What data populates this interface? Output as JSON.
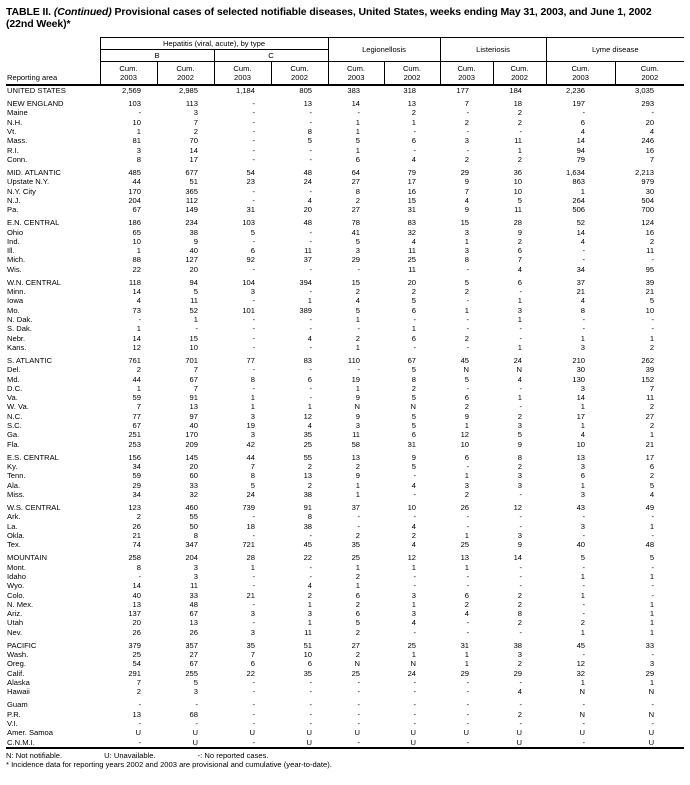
{
  "title": {
    "bold_prefix": "TABLE II.",
    "continued": "(Continued)",
    "text": "Provisional cases of selected notifiable diseases, United States, weeks ending May 31, 2003, and June 1, 2002",
    "week": "(22nd Week)*"
  },
  "table": {
    "reporting_area_label": "Reporting area",
    "groups": {
      "hepatitis": "Hepatitis (viral, acute), by type",
      "hep_b": "B",
      "hep_c": "C",
      "legionellosis": "Legionellosis",
      "listeriosis": "Listeriosis",
      "lyme": "Lyme disease"
    },
    "cum_label": "Cum.",
    "year_columns": [
      "2003",
      "2002",
      "2003",
      "2002",
      "2003",
      "2002",
      "2003",
      "2002",
      "2003",
      "2002"
    ],
    "rows": [
      {
        "kind": "total",
        "label": "UNITED STATES",
        "v": [
          "2,569",
          "2,985",
          "1,184",
          "805",
          "383",
          "318",
          "177",
          "184",
          "2,236",
          "3,035"
        ]
      },
      {
        "kind": "gap"
      },
      {
        "kind": "region",
        "label": "NEW ENGLAND",
        "v": [
          "103",
          "113",
          "-",
          "13",
          "14",
          "13",
          "7",
          "18",
          "197",
          "293"
        ]
      },
      {
        "kind": "state",
        "label": "Maine",
        "v": [
          "-",
          "3",
          "-",
          "-",
          "-",
          "2",
          "-",
          "2",
          "-",
          "-"
        ]
      },
      {
        "kind": "state",
        "label": "N.H.",
        "v": [
          "10",
          "7",
          "-",
          "-",
          "1",
          "1",
          "2",
          "2",
          "6",
          "20"
        ]
      },
      {
        "kind": "state",
        "label": "Vt.",
        "v": [
          "1",
          "2",
          "-",
          "8",
          "1",
          "-",
          "-",
          "-",
          "4",
          "4"
        ]
      },
      {
        "kind": "state",
        "label": "Mass.",
        "v": [
          "81",
          "70",
          "-",
          "5",
          "5",
          "6",
          "3",
          "11",
          "14",
          "246"
        ]
      },
      {
        "kind": "state",
        "label": "R.I.",
        "v": [
          "3",
          "14",
          "-",
          "-",
          "1",
          "-",
          "-",
          "1",
          "94",
          "16"
        ]
      },
      {
        "kind": "state",
        "label": "Conn.",
        "v": [
          "8",
          "17",
          "-",
          "-",
          "6",
          "4",
          "2",
          "2",
          "79",
          "7"
        ]
      },
      {
        "kind": "gap"
      },
      {
        "kind": "region",
        "label": "MID. ATLANTIC",
        "v": [
          "485",
          "677",
          "54",
          "48",
          "64",
          "79",
          "29",
          "36",
          "1,634",
          "2,213"
        ]
      },
      {
        "kind": "state",
        "label": "Upstate N.Y.",
        "v": [
          "44",
          "51",
          "23",
          "24",
          "27",
          "17",
          "9",
          "10",
          "863",
          "979"
        ]
      },
      {
        "kind": "state",
        "label": "N.Y. City",
        "v": [
          "170",
          "365",
          "-",
          "-",
          "8",
          "16",
          "7",
          "10",
          "1",
          "30"
        ]
      },
      {
        "kind": "state",
        "label": "N.J.",
        "v": [
          "204",
          "112",
          "-",
          "4",
          "2",
          "15",
          "4",
          "5",
          "264",
          "504"
        ]
      },
      {
        "kind": "state",
        "label": "Pa.",
        "v": [
          "67",
          "149",
          "31",
          "20",
          "27",
          "31",
          "9",
          "11",
          "506",
          "700"
        ]
      },
      {
        "kind": "gap"
      },
      {
        "kind": "region",
        "label": "E.N. CENTRAL",
        "v": [
          "186",
          "234",
          "103",
          "48",
          "78",
          "83",
          "15",
          "28",
          "52",
          "124"
        ]
      },
      {
        "kind": "state",
        "label": "Ohio",
        "v": [
          "65",
          "38",
          "5",
          "-",
          "41",
          "32",
          "3",
          "9",
          "14",
          "16"
        ]
      },
      {
        "kind": "state",
        "label": "Ind.",
        "v": [
          "10",
          "9",
          "-",
          "-",
          "5",
          "4",
          "1",
          "2",
          "4",
          "2"
        ]
      },
      {
        "kind": "state",
        "label": "Ill.",
        "v": [
          "1",
          "40",
          "6",
          "11",
          "3",
          "11",
          "3",
          "6",
          "-",
          "11"
        ]
      },
      {
        "kind": "state",
        "label": "Mich.",
        "v": [
          "88",
          "127",
          "92",
          "37",
          "29",
          "25",
          "8",
          "7",
          "-",
          "-"
        ]
      },
      {
        "kind": "state",
        "label": "Wis.",
        "v": [
          "22",
          "20",
          "-",
          "-",
          "-",
          "11",
          "-",
          "4",
          "34",
          "95"
        ]
      },
      {
        "kind": "gap"
      },
      {
        "kind": "region",
        "label": "W.N. CENTRAL",
        "v": [
          "118",
          "94",
          "104",
          "394",
          "15",
          "20",
          "5",
          "6",
          "37",
          "39"
        ]
      },
      {
        "kind": "state",
        "label": "Minn.",
        "v": [
          "14",
          "5",
          "3",
          "-",
          "2",
          "2",
          "2",
          "-",
          "21",
          "21"
        ]
      },
      {
        "kind": "state",
        "label": "Iowa",
        "v": [
          "4",
          "11",
          "-",
          "1",
          "4",
          "5",
          "-",
          "1",
          "4",
          "5"
        ]
      },
      {
        "kind": "state",
        "label": "Mo.",
        "v": [
          "73",
          "52",
          "101",
          "389",
          "5",
          "6",
          "1",
          "3",
          "8",
          "10"
        ]
      },
      {
        "kind": "state",
        "label": "N. Dak.",
        "v": [
          "-",
          "1",
          "-",
          "-",
          "1",
          "-",
          "-",
          "1",
          "-",
          "-"
        ]
      },
      {
        "kind": "state",
        "label": "S. Dak.",
        "v": [
          "1",
          "-",
          "-",
          "-",
          "-",
          "1",
          "-",
          "-",
          "-",
          "-"
        ]
      },
      {
        "kind": "state",
        "label": "Nebr.",
        "v": [
          "14",
          "15",
          "-",
          "4",
          "2",
          "6",
          "2",
          "-",
          "1",
          "1"
        ]
      },
      {
        "kind": "state",
        "label": "Kans.",
        "v": [
          "12",
          "10",
          "-",
          "-",
          "1",
          "-",
          "-",
          "1",
          "3",
          "2"
        ]
      },
      {
        "kind": "gap"
      },
      {
        "kind": "region",
        "label": "S. ATLANTIC",
        "v": [
          "761",
          "701",
          "77",
          "83",
          "110",
          "67",
          "45",
          "24",
          "210",
          "262"
        ]
      },
      {
        "kind": "state",
        "label": "Del.",
        "v": [
          "2",
          "7",
          "-",
          "-",
          "-",
          "5",
          "N",
          "N",
          "30",
          "39"
        ]
      },
      {
        "kind": "state",
        "label": "Md.",
        "v": [
          "44",
          "67",
          "8",
          "6",
          "19",
          "8",
          "5",
          "4",
          "130",
          "152"
        ]
      },
      {
        "kind": "state",
        "label": "D.C.",
        "v": [
          "1",
          "7",
          "-",
          "-",
          "1",
          "2",
          "-",
          "-",
          "3",
          "7"
        ]
      },
      {
        "kind": "state",
        "label": "Va.",
        "v": [
          "59",
          "91",
          "1",
          "-",
          "9",
          "5",
          "6",
          "1",
          "14",
          "11"
        ]
      },
      {
        "kind": "state",
        "label": "W. Va.",
        "v": [
          "7",
          "13",
          "1",
          "1",
          "N",
          "N",
          "2",
          "-",
          "1",
          "2"
        ]
      },
      {
        "kind": "state",
        "label": "N.C.",
        "v": [
          "77",
          "97",
          "3",
          "12",
          "9",
          "5",
          "9",
          "2",
          "17",
          "27"
        ]
      },
      {
        "kind": "state",
        "label": "S.C.",
        "v": [
          "67",
          "40",
          "19",
          "4",
          "3",
          "5",
          "1",
          "3",
          "1",
          "2"
        ]
      },
      {
        "kind": "state",
        "label": "Ga.",
        "v": [
          "251",
          "170",
          "3",
          "35",
          "11",
          "6",
          "12",
          "5",
          "4",
          "1"
        ]
      },
      {
        "kind": "state",
        "label": "Fla.",
        "v": [
          "253",
          "209",
          "42",
          "25",
          "58",
          "31",
          "10",
          "9",
          "10",
          "21"
        ]
      },
      {
        "kind": "gap"
      },
      {
        "kind": "region",
        "label": "E.S. CENTRAL",
        "v": [
          "156",
          "145",
          "44",
          "55",
          "13",
          "9",
          "6",
          "8",
          "13",
          "17"
        ]
      },
      {
        "kind": "state",
        "label": "Ky.",
        "v": [
          "34",
          "20",
          "7",
          "2",
          "2",
          "5",
          "-",
          "2",
          "3",
          "6"
        ]
      },
      {
        "kind": "state",
        "label": "Tenn.",
        "v": [
          "59",
          "60",
          "8",
          "13",
          "9",
          "-",
          "1",
          "3",
          "6",
          "2"
        ]
      },
      {
        "kind": "state",
        "label": "Ala.",
        "v": [
          "29",
          "33",
          "5",
          "2",
          "1",
          "4",
          "3",
          "3",
          "1",
          "5"
        ]
      },
      {
        "kind": "state",
        "label": "Miss.",
        "v": [
          "34",
          "32",
          "24",
          "38",
          "1",
          "-",
          "2",
          "-",
          "3",
          "4"
        ]
      },
      {
        "kind": "gap"
      },
      {
        "kind": "region",
        "label": "W.S. CENTRAL",
        "v": [
          "123",
          "460",
          "739",
          "91",
          "37",
          "10",
          "26",
          "12",
          "43",
          "49"
        ]
      },
      {
        "kind": "state",
        "label": "Ark.",
        "v": [
          "2",
          "55",
          "-",
          "8",
          "-",
          "-",
          "-",
          "-",
          "-",
          "-"
        ]
      },
      {
        "kind": "state",
        "label": "La.",
        "v": [
          "26",
          "50",
          "18",
          "38",
          "-",
          "4",
          "-",
          "-",
          "3",
          "1"
        ]
      },
      {
        "kind": "state",
        "label": "Okla.",
        "v": [
          "21",
          "8",
          "-",
          "-",
          "2",
          "2",
          "1",
          "3",
          "-",
          "-"
        ]
      },
      {
        "kind": "state",
        "label": "Tex.",
        "v": [
          "74",
          "347",
          "721",
          "45",
          "35",
          "4",
          "25",
          "9",
          "40",
          "48"
        ]
      },
      {
        "kind": "gap"
      },
      {
        "kind": "region",
        "label": "MOUNTAIN",
        "v": [
          "258",
          "204",
          "28",
          "22",
          "25",
          "12",
          "13",
          "14",
          "5",
          "5"
        ]
      },
      {
        "kind": "state",
        "label": "Mont.",
        "v": [
          "8",
          "3",
          "1",
          "-",
          "1",
          "1",
          "1",
          "-",
          "-",
          "-"
        ]
      },
      {
        "kind": "state",
        "label": "Idaho",
        "v": [
          "-",
          "3",
          "-",
          "-",
          "2",
          "-",
          "-",
          "-",
          "1",
          "1"
        ]
      },
      {
        "kind": "state",
        "label": "Wyo.",
        "v": [
          "14",
          "11",
          "-",
          "4",
          "1",
          "-",
          "-",
          "-",
          "-",
          "-"
        ]
      },
      {
        "kind": "state",
        "label": "Colo.",
        "v": [
          "40",
          "33",
          "21",
          "2",
          "6",
          "3",
          "6",
          "2",
          "1",
          "-"
        ]
      },
      {
        "kind": "state",
        "label": "N. Mex.",
        "v": [
          "13",
          "48",
          "-",
          "1",
          "2",
          "1",
          "2",
          "2",
          "-",
          "1"
        ]
      },
      {
        "kind": "state",
        "label": "Ariz.",
        "v": [
          "137",
          "67",
          "3",
          "3",
          "6",
          "3",
          "4",
          "8",
          "-",
          "1"
        ]
      },
      {
        "kind": "state",
        "label": "Utah",
        "v": [
          "20",
          "13",
          "-",
          "1",
          "5",
          "4",
          "-",
          "2",
          "2",
          "1"
        ]
      },
      {
        "kind": "state",
        "label": "Nev.",
        "v": [
          "26",
          "26",
          "3",
          "11",
          "2",
          "-",
          "-",
          "-",
          "1",
          "1"
        ]
      },
      {
        "kind": "gap"
      },
      {
        "kind": "region",
        "label": "PACIFIC",
        "v": [
          "379",
          "357",
          "35",
          "51",
          "27",
          "25",
          "31",
          "38",
          "45",
          "33"
        ]
      },
      {
        "kind": "state",
        "label": "Wash.",
        "v": [
          "25",
          "27",
          "7",
          "10",
          "2",
          "1",
          "1",
          "3",
          "-",
          "-"
        ]
      },
      {
        "kind": "state",
        "label": "Oreg.",
        "v": [
          "54",
          "67",
          "6",
          "6",
          "N",
          "N",
          "1",
          "2",
          "12",
          "3"
        ]
      },
      {
        "kind": "state",
        "label": "Calif.",
        "v": [
          "291",
          "255",
          "22",
          "35",
          "25",
          "24",
          "29",
          "29",
          "32",
          "29"
        ]
      },
      {
        "kind": "state",
        "label": "Alaska",
        "v": [
          "7",
          "5",
          "-",
          "-",
          "-",
          "-",
          "-",
          "-",
          "1",
          "1"
        ]
      },
      {
        "kind": "state",
        "label": "Hawaii",
        "v": [
          "2",
          "3",
          "-",
          "-",
          "-",
          "-",
          "-",
          "4",
          "N",
          "N"
        ]
      },
      {
        "kind": "gap"
      },
      {
        "kind": "state",
        "label": "Guam",
        "v": [
          "-",
          "-",
          "-",
          "-",
          "-",
          "-",
          "-",
          "-",
          "-",
          "-"
        ]
      },
      {
        "kind": "state",
        "label": "P.R.",
        "v": [
          "13",
          "68",
          "-",
          "-",
          "-",
          "-",
          "-",
          "2",
          "N",
          "N"
        ]
      },
      {
        "kind": "state",
        "label": "V.I.",
        "v": [
          "-",
          "-",
          "-",
          "-",
          "-",
          "-",
          "-",
          "-",
          "-",
          "-"
        ]
      },
      {
        "kind": "state",
        "label": "Amer. Samoa",
        "v": [
          "U",
          "U",
          "U",
          "U",
          "U",
          "U",
          "U",
          "U",
          "U",
          "U"
        ]
      },
      {
        "kind": "state",
        "label": "C.N.M.I.",
        "v": [
          "-",
          "U",
          "-",
          "U",
          "-",
          "U",
          "-",
          "U",
          "-",
          "U"
        ]
      }
    ]
  },
  "footnotes": {
    "item1": "N: Not notifiable.",
    "item2": "U: Unavailable.",
    "item3": "-: No reported cases.",
    "line2": "* Incidence data for reporting years 2002 and 2003 are provisional and cumulative (year-to-date)."
  }
}
